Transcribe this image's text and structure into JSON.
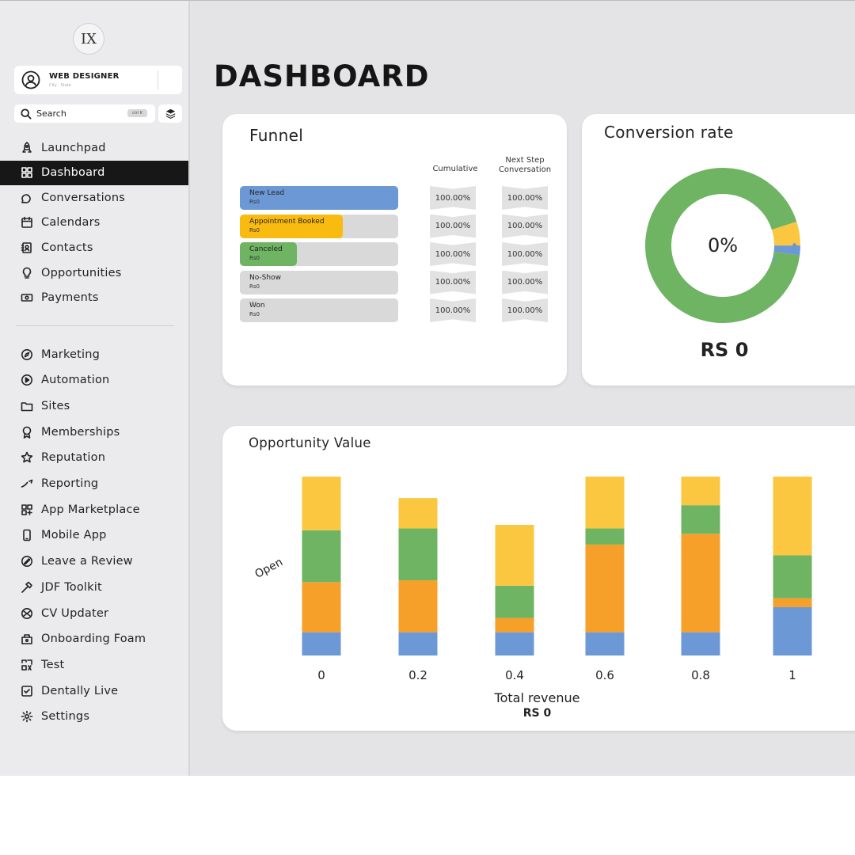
{
  "logo": {
    "text": "IX"
  },
  "profile": {
    "name": "WEB DESIGNER",
    "subtitle": "City , State"
  },
  "search": {
    "placeholder": "Search",
    "shortcut": "ctrl K"
  },
  "nav": {
    "primary": [
      {
        "label": "Launchpad",
        "icon": "rocket-icon",
        "active": false
      },
      {
        "label": "Dashboard",
        "icon": "grid-icon",
        "active": true
      },
      {
        "label": "Conversations",
        "icon": "chat-icon",
        "active": false
      },
      {
        "label": "Calendars",
        "icon": "calendar-icon",
        "active": false
      },
      {
        "label": "Contacts",
        "icon": "contacts-icon",
        "active": false
      },
      {
        "label": "Opportunities",
        "icon": "lightbulb-icon",
        "active": false
      },
      {
        "label": "Payments",
        "icon": "cash-icon",
        "active": false
      }
    ],
    "secondary": [
      {
        "label": "Marketing",
        "icon": "compass-icon"
      },
      {
        "label": "Automation",
        "icon": "automation-icon"
      },
      {
        "label": "Sites",
        "icon": "folder-icon"
      },
      {
        "label": "Memberships",
        "icon": "badge-icon"
      },
      {
        "label": "Reputation",
        "icon": "star-icon"
      },
      {
        "label": "Reporting",
        "icon": "trend-icon"
      },
      {
        "label": "App Marketplace",
        "icon": "apps-icon"
      },
      {
        "label": "Mobile App",
        "icon": "phone-icon"
      },
      {
        "label": "Leave a Review",
        "icon": "review-icon"
      },
      {
        "label": "JDF Toolkit",
        "icon": "hammer-icon"
      },
      {
        "label": "CV Updater",
        "icon": "cv-icon"
      },
      {
        "label": "Onboarding Foam",
        "icon": "onboarding-icon"
      },
      {
        "label": "Test",
        "icon": "test-icon"
      },
      {
        "label": "Dentally Live",
        "icon": "checkbox-icon"
      },
      {
        "label": "Settings",
        "icon": "gear-icon"
      }
    ]
  },
  "page": {
    "title": "DASHBOARD"
  },
  "funnel": {
    "title": "Funnel",
    "col_cumulative": "Cumulative",
    "col_next_step": "Next Step Conversation",
    "stages": [
      {
        "label": "New Lead",
        "value": "Rs0",
        "fill": 1.0,
        "color": "#6d98d6",
        "cumulative": "100.00%",
        "next": "100.00%"
      },
      {
        "label": "Appointment Booked",
        "value": "Rs0",
        "fill": 0.65,
        "color": "#f9bb10",
        "cumulative": "100.00%",
        "next": "100.00%"
      },
      {
        "label": "Canceled",
        "value": "Rs0",
        "fill": 0.36,
        "color": "#6fb462",
        "cumulative": "100.00%",
        "next": "100.00%"
      },
      {
        "label": "No-Show",
        "value": "Rs0",
        "fill": 0.0,
        "color": "#d9d9d9",
        "cumulative": "100.00%",
        "next": "100.00%"
      },
      {
        "label": "Won",
        "value": "Rs0",
        "fill": 0.0,
        "color": "#d9d9d9",
        "cumulative": "100.00%",
        "next": "100.00%"
      }
    ]
  },
  "conversion": {
    "title": "Conversion rate",
    "center": "0%",
    "total": "RS 0",
    "segments": [
      {
        "fraction": 0.93,
        "color": "#6fb462"
      },
      {
        "fraction": 0.05,
        "color": "#fbc740"
      },
      {
        "fraction": 0.02,
        "color": "#6d98d6"
      }
    ]
  },
  "opportunity": {
    "title": "Opportunity Value",
    "ylabel": "Open",
    "xlabel": "Total revenue",
    "total": "RS 0"
  },
  "chart_data": {
    "type": "bar",
    "stacked": true,
    "categories": [
      "0",
      "0.2",
      "0.4",
      "0.6",
      "0.8",
      "1"
    ],
    "xlabel": "Total revenue",
    "ylabel": "Open",
    "series": [
      {
        "values": [
          13,
          13,
          13,
          13,
          13,
          27
        ],
        "color": "#6d98d6"
      },
      {
        "values": [
          28,
          29,
          8,
          49,
          55,
          5
        ],
        "color": "#f6a02a"
      },
      {
        "values": [
          29,
          29,
          18,
          9,
          16,
          24
        ],
        "color": "#6fb462"
      },
      {
        "values": [
          30,
          17,
          34,
          29,
          16,
          44
        ],
        "color": "#fbc740"
      }
    ]
  }
}
